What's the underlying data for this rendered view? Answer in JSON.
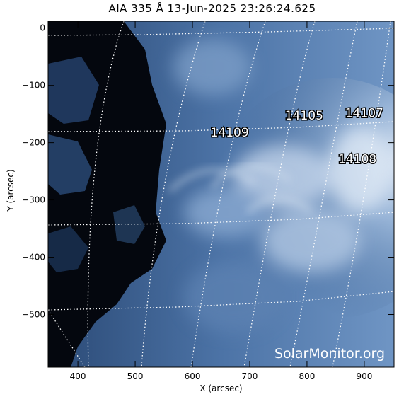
{
  "title": "AIA 335 Å 13-Jun-2025 23:26:24.625",
  "x_axis": {
    "label": "X (arcsec)",
    "range": [
      348,
      952
    ],
    "ticks": [
      400,
      500,
      600,
      700,
      800,
      900
    ],
    "tick_labels": [
      "400",
      "500",
      "600",
      "700",
      "800",
      "900"
    ]
  },
  "y_axis": {
    "label": "Y (arcsec)",
    "range": [
      -592,
      12
    ],
    "ticks": [
      0,
      -100,
      -200,
      -300,
      -400,
      -500
    ],
    "tick_labels": [
      "0",
      "−100",
      "−200",
      "−300",
      "−400",
      "−500"
    ]
  },
  "regions": [
    {
      "id": "14109",
      "x": 665,
      "y": -182
    },
    {
      "id": "14105",
      "x": 795,
      "y": -152
    },
    {
      "id": "14107",
      "x": 900,
      "y": -148
    },
    {
      "id": "14108",
      "x": 888,
      "y": -228
    }
  ],
  "watermark": "SolarMonitor.org",
  "colors": {
    "image_dark": "#04070e",
    "image_mid": "#3a5e8e",
    "image_bright": "#dbe7f4",
    "grid": "#ffffff"
  }
}
